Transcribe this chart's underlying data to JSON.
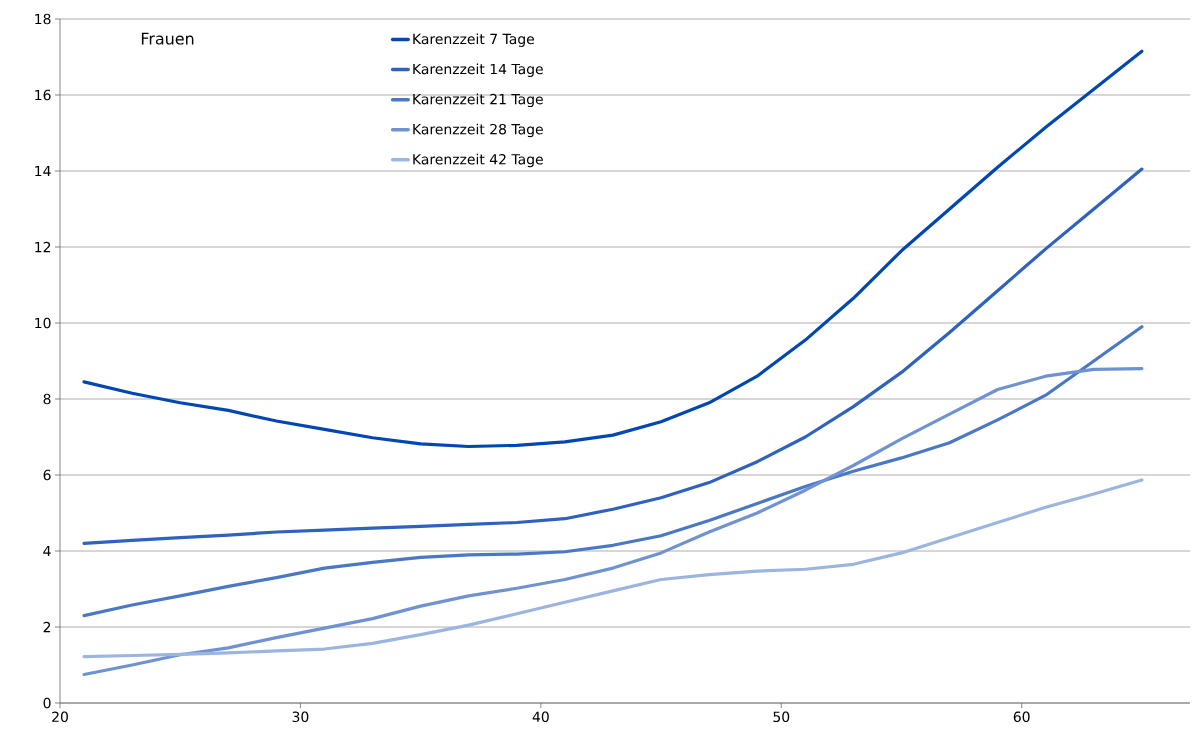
{
  "chart_data": {
    "type": "line",
    "x": [
      21,
      23,
      25,
      27,
      29,
      31,
      33,
      35,
      37,
      39,
      41,
      43,
      45,
      47,
      49,
      51,
      53,
      55,
      57,
      59,
      61,
      63,
      65
    ],
    "series": [
      {
        "name": "Karenzzeit 7 Tage",
        "color": "#0047b3",
        "values": [
          8.45,
          8.15,
          7.9,
          7.7,
          7.42,
          7.2,
          6.98,
          6.82,
          6.75,
          6.78,
          6.87,
          7.05,
          7.4,
          7.9,
          8.6,
          9.55,
          10.65,
          11.9,
          13.0,
          14.1,
          15.15,
          16.15,
          17.15
        ]
      },
      {
        "name": "Karenzzeit 14 Tage",
        "color": "#2e62be",
        "values": [
          4.2,
          4.28,
          4.35,
          4.42,
          4.5,
          4.55,
          4.6,
          4.65,
          4.7,
          4.75,
          4.85,
          5.1,
          5.4,
          5.8,
          6.35,
          7.0,
          7.8,
          8.7,
          9.75,
          10.85,
          11.95,
          13.0,
          14.05
        ]
      },
      {
        "name": "Karenzzeit 21 Tage",
        "color": "#4a78c6",
        "values": [
          2.3,
          2.58,
          2.82,
          3.07,
          3.3,
          3.55,
          3.7,
          3.83,
          3.9,
          3.92,
          3.98,
          4.15,
          4.4,
          4.8,
          5.25,
          5.7,
          6.1,
          6.45,
          6.85,
          7.45,
          8.1,
          9.0,
          9.9
        ]
      },
      {
        "name": "Karenzzeit 28 Tage",
        "color": "#6f93d2",
        "values": [
          0.75,
          1.0,
          1.27,
          1.45,
          1.72,
          1.97,
          2.22,
          2.55,
          2.82,
          3.02,
          3.25,
          3.55,
          3.95,
          4.5,
          5.0,
          5.6,
          6.25,
          6.95,
          7.6,
          8.25,
          8.6,
          8.78,
          8.8
        ]
      },
      {
        "name": "Karenzzeit 42 Tage",
        "color": "#9cb5e0",
        "values": [
          1.22,
          1.25,
          1.28,
          1.32,
          1.37,
          1.42,
          1.57,
          1.8,
          2.05,
          2.35,
          2.65,
          2.95,
          3.25,
          3.38,
          3.47,
          3.52,
          3.65,
          3.95,
          4.35,
          4.75,
          5.15,
          5.5,
          5.87
        ]
      }
    ],
    "annotations": [
      "Frauen"
    ],
    "xlim": [
      20,
      67
    ],
    "ylim": [
      0,
      18
    ],
    "xticks": [
      20,
      30,
      40,
      50,
      60
    ],
    "yticks": [
      0,
      2,
      4,
      6,
      8,
      10,
      12,
      14,
      16,
      18
    ],
    "grid": "y",
    "legend": "top",
    "marker": "none",
    "line_style": "solid"
  }
}
